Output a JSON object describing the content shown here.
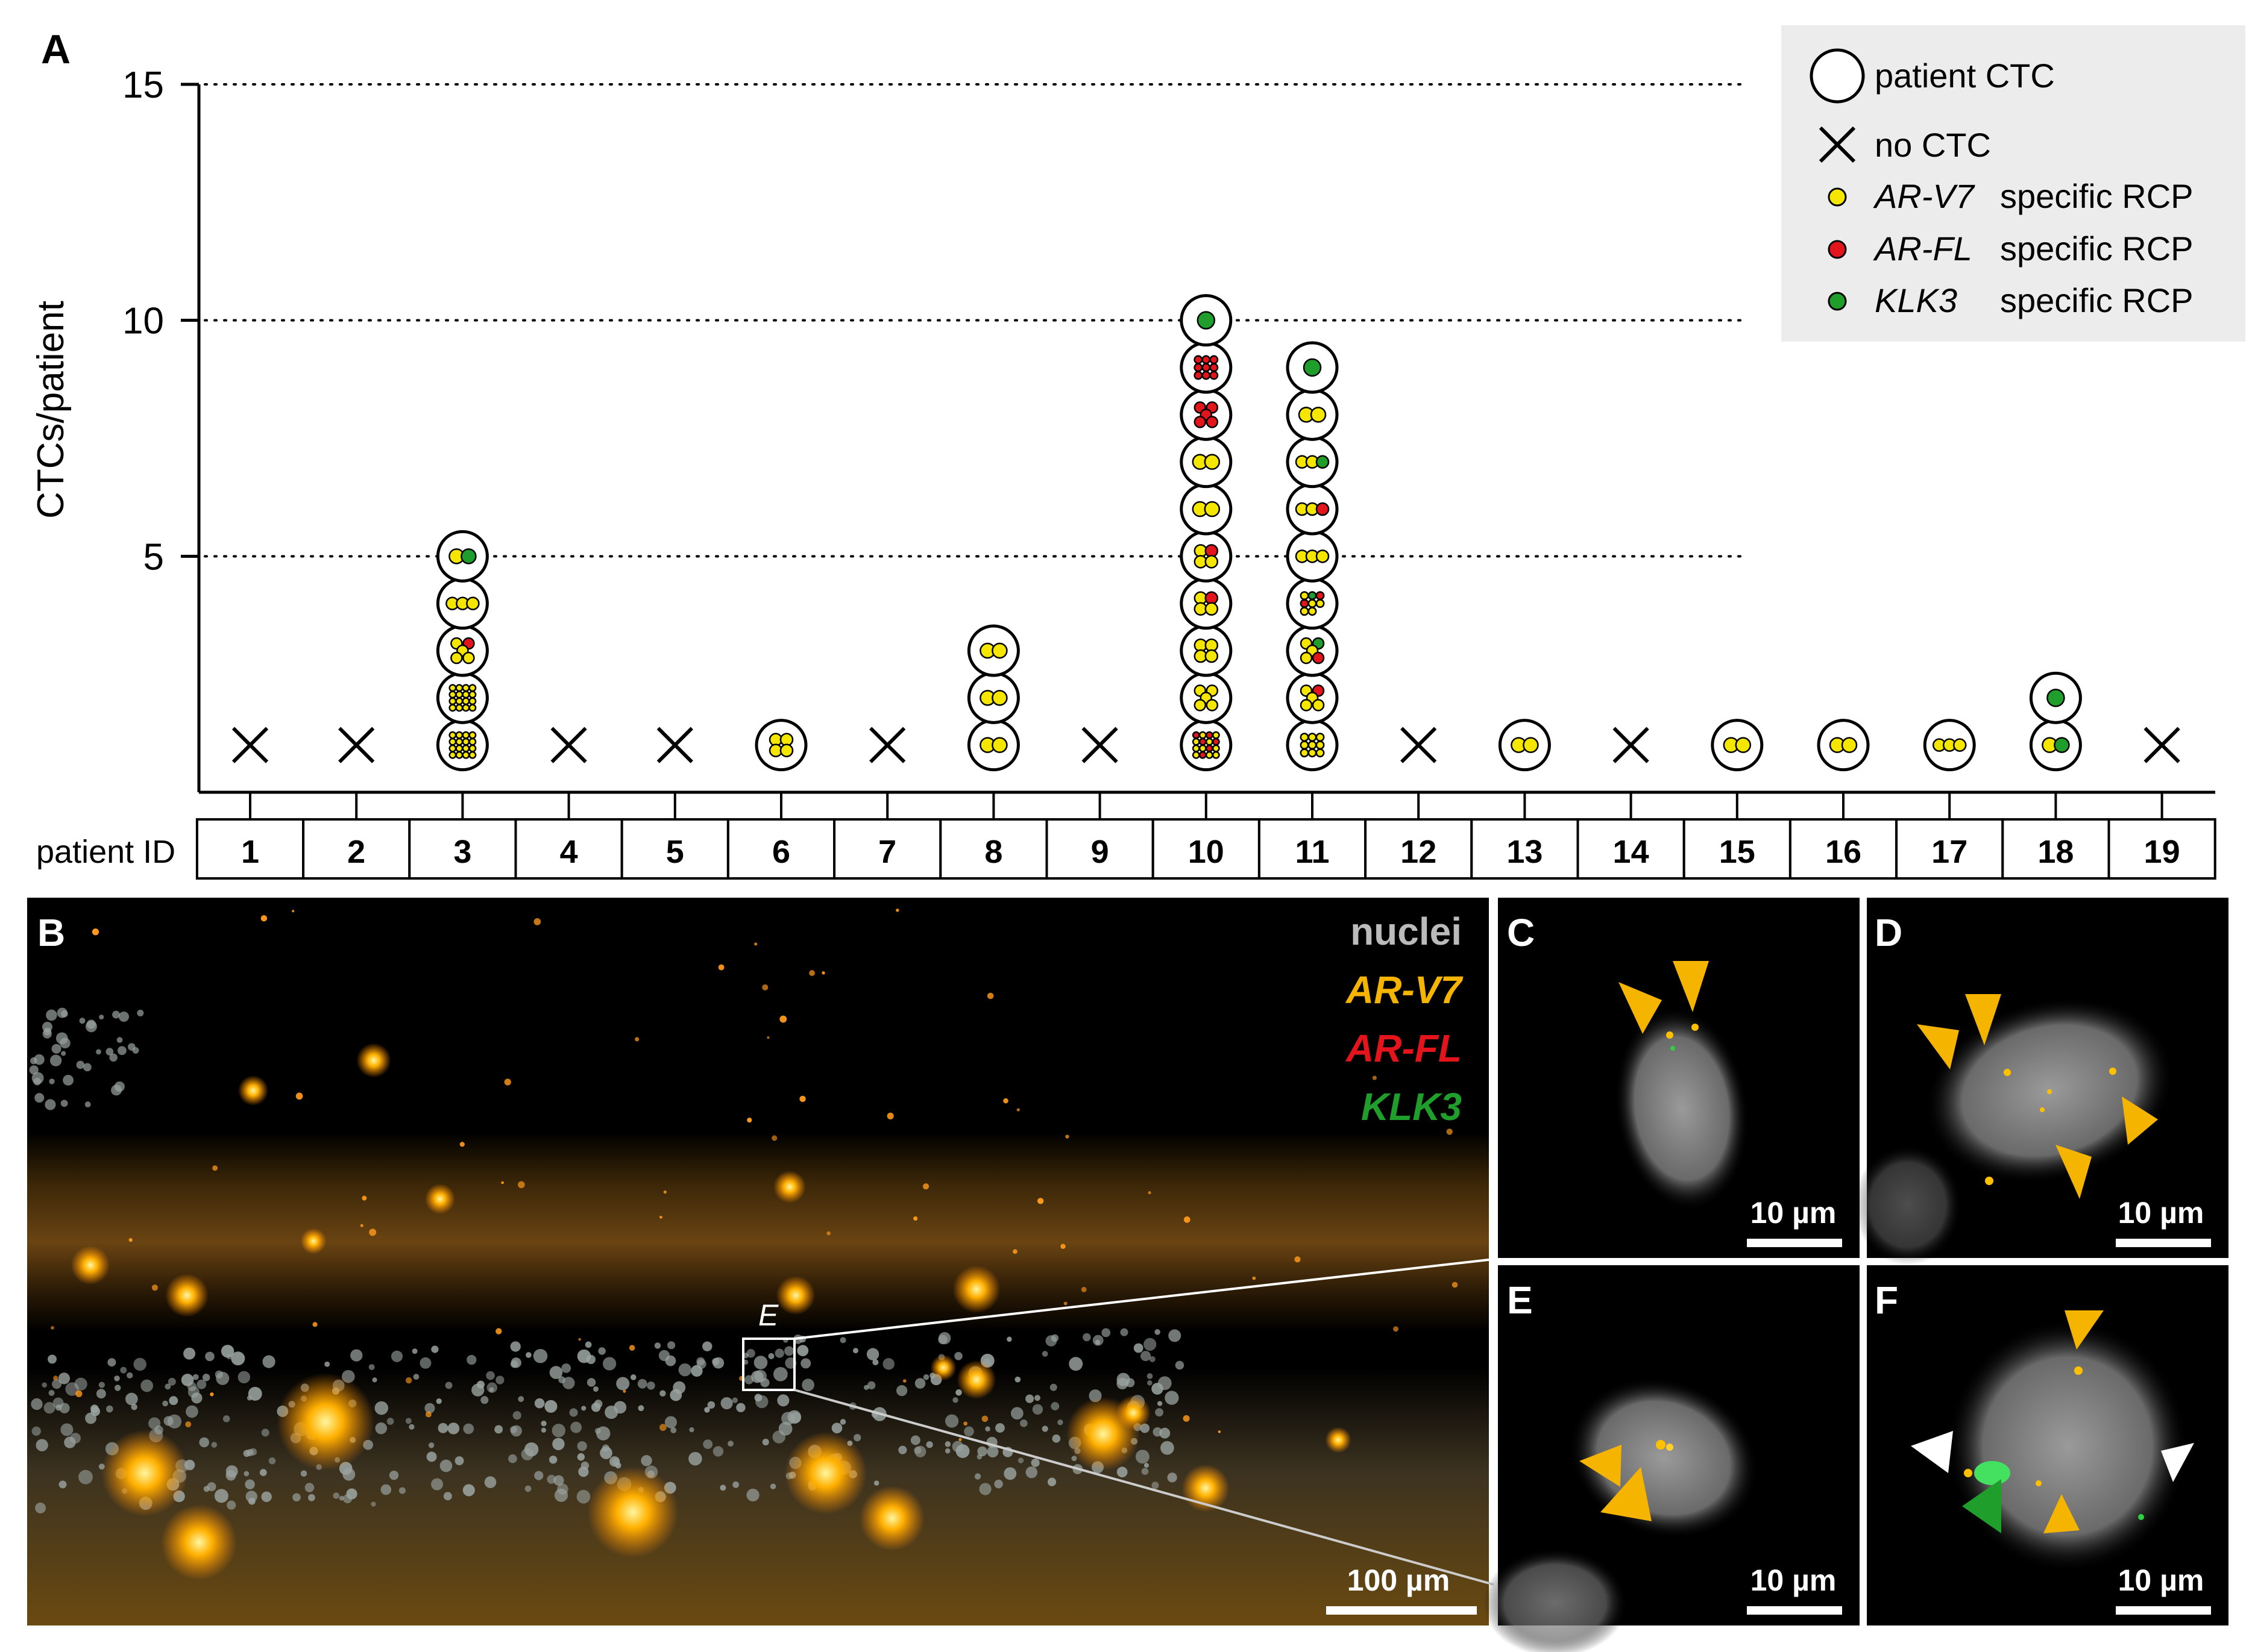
{
  "panels": {
    "a": "A",
    "b": "B",
    "c": "C",
    "d": "D",
    "e": "E",
    "f": "F"
  },
  "chart_data": {
    "type": "scatter",
    "ylabel": "CTCs/patient",
    "ylim": [
      0,
      15
    ],
    "yticks": [
      5,
      10,
      15
    ],
    "grid": "dotted horizontal at 5, 10, 15",
    "row_label": "patient ID",
    "patients": [
      "1",
      "2",
      "3",
      "4",
      "5",
      "6",
      "7",
      "8",
      "9",
      "10",
      "11",
      "12",
      "13",
      "14",
      "15",
      "16",
      "17",
      "18",
      "19"
    ],
    "legend_position": "top-right",
    "legend": {
      "ctc": "patient CTC",
      "no_ctc": "no CTC",
      "arv7_gene": "AR-V7",
      "arv7_rest": "specific RCP",
      "arfl_gene": "AR-FL",
      "arfl_rest": "specific RCP",
      "klk3_gene": "KLK3",
      "klk3_rest": "specific RCP"
    },
    "colors": {
      "ARV7": "#f5e600",
      "ARFL": "#e3141b",
      "KLK3": "#1f9e2c"
    },
    "ctcs": {
      "1": [],
      "2": [],
      "3": [
        {
          "n": 1,
          "rcp": [
            "Y",
            "Y",
            "Y",
            "Y",
            "Y",
            "Y",
            "Y",
            "Y",
            "Y",
            "Y",
            "Y",
            "Y",
            "Y",
            "Y",
            "Y",
            "Y"
          ]
        },
        {
          "n": 2,
          "rcp": [
            "Y",
            "Y",
            "Y",
            "Y",
            "Y",
            "Y",
            "Y",
            "Y",
            "Y",
            "Y",
            "Y",
            "Y",
            "Y",
            "Y",
            "Y",
            "Y"
          ]
        },
        {
          "n": 3,
          "rcp": [
            "Y",
            "R",
            "Y",
            "Y",
            "Y"
          ]
        },
        {
          "n": 4,
          "rcp": [
            "Y",
            "Y",
            "Y"
          ]
        },
        {
          "n": 5,
          "rcp": [
            "Y",
            "G"
          ]
        }
      ],
      "4": [],
      "5": [],
      "6": [
        {
          "n": 1,
          "rcp": [
            "Y",
            "Y",
            "Y",
            "Y"
          ]
        }
      ],
      "7": [],
      "8": [
        {
          "n": 1,
          "rcp": [
            "Y",
            "Y"
          ]
        },
        {
          "n": 2,
          "rcp": [
            "Y",
            "Y"
          ]
        },
        {
          "n": 3,
          "rcp": [
            "Y",
            "Y"
          ]
        }
      ],
      "9": [],
      "10": [
        {
          "n": 1,
          "rcp": [
            "R",
            "Y",
            "R",
            "Y",
            "Y",
            "R",
            "Y",
            "R",
            "Y",
            "Y",
            "R",
            "Y",
            "Y",
            "R",
            "Y",
            "Y"
          ]
        },
        {
          "n": 2,
          "rcp": [
            "Y",
            "Y",
            "Y",
            "Y",
            "Y"
          ]
        },
        {
          "n": 3,
          "rcp": [
            "Y",
            "Y",
            "Y",
            "Y"
          ]
        },
        {
          "n": 4,
          "rcp": [
            "Y",
            "R",
            "Y",
            "Y"
          ]
        },
        {
          "n": 5,
          "rcp": [
            "Y",
            "R",
            "Y",
            "Y"
          ]
        },
        {
          "n": 6,
          "rcp": [
            "Y",
            "Y"
          ]
        },
        {
          "n": 7,
          "rcp": [
            "Y",
            "Y"
          ]
        },
        {
          "n": 8,
          "rcp": [
            "R",
            "R",
            "R",
            "R",
            "R"
          ]
        },
        {
          "n": 9,
          "rcp": [
            "R",
            "R",
            "R",
            "R",
            "R",
            "R",
            "R",
            "R",
            "R"
          ]
        },
        {
          "n": 10,
          "rcp": [
            "G"
          ]
        }
      ],
      "11": [
        {
          "n": 1,
          "rcp": [
            "Y",
            "Y",
            "Y",
            "Y",
            "Y",
            "Y",
            "Y",
            "Y",
            "Y"
          ]
        },
        {
          "n": 2,
          "rcp": [
            "Y",
            "R",
            "Y",
            "Y",
            "Y"
          ]
        },
        {
          "n": 3,
          "rcp": [
            "Y",
            "G",
            "Y",
            "Y",
            "R"
          ]
        },
        {
          "n": 4,
          "rcp": [
            "Y",
            "G",
            "R",
            "R",
            "Y",
            "Y",
            "Y",
            "Y"
          ]
        },
        {
          "n": 5,
          "rcp": [
            "Y",
            "Y",
            "Y"
          ]
        },
        {
          "n": 6,
          "rcp": [
            "Y",
            "Y",
            "R"
          ]
        },
        {
          "n": 7,
          "rcp": [
            "Y",
            "Y",
            "G"
          ]
        },
        {
          "n": 8,
          "rcp": [
            "Y",
            "Y"
          ]
        },
        {
          "n": 9,
          "rcp": [
            "G"
          ]
        }
      ],
      "12": [],
      "13": [
        {
          "n": 1,
          "rcp": [
            "Y",
            "Y"
          ]
        }
      ],
      "14": [],
      "15": [
        {
          "n": 1,
          "rcp": [
            "Y",
            "Y"
          ]
        }
      ],
      "16": [
        {
          "n": 1,
          "rcp": [
            "Y",
            "Y"
          ]
        }
      ],
      "17": [
        {
          "n": 1,
          "rcp": [
            "Y",
            "Y",
            "Y"
          ]
        }
      ],
      "18": [
        {
          "n": 1,
          "rcp": [
            "Y",
            "G"
          ]
        },
        {
          "n": 2,
          "rcp": [
            "G"
          ]
        }
      ],
      "19": []
    }
  },
  "micro": {
    "nuclei": "nuclei",
    "arv7": "AR-V7",
    "arfl": "AR-FL",
    "klk3": "KLK3",
    "inset": "E",
    "scale_b": "100 µm",
    "scale_small": "10 µm",
    "color_nuclei": "#bbbbbb",
    "color_arv7": "#f5b400",
    "color_arfl": "#e3141b",
    "color_klk3": "#1f9e2c"
  }
}
